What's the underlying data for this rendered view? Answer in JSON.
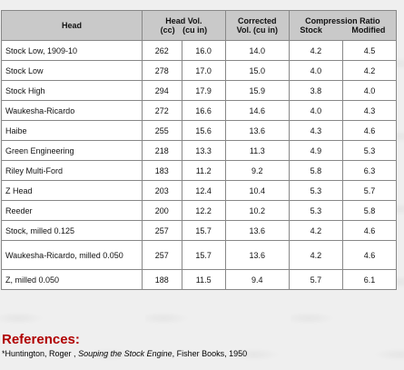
{
  "table": {
    "headers": {
      "head": "Head",
      "head_vol_title": "Head Vol.",
      "head_vol_cc": "(cc)",
      "head_vol_cuin": "(cu in)",
      "corrected_title": "Corrected",
      "corrected_sub": "Vol. (cu in)",
      "compression_title": "Compression Ratio",
      "compression_stock": "Stock",
      "compression_modified": "Modified"
    },
    "rows": [
      {
        "name": "Stock Low, 1909-10",
        "cc": "262",
        "cuin": "16.0",
        "corrected": "14.0",
        "stock": "4.2",
        "modified": "4.5"
      },
      {
        "name": "Stock Low",
        "cc": "278",
        "cuin": "17.0",
        "corrected": "15.0",
        "stock": "4.0",
        "modified": "4.2"
      },
      {
        "name": "Stock High",
        "cc": "294",
        "cuin": "17.9",
        "corrected": "15.9",
        "stock": "3.8",
        "modified": "4.0"
      },
      {
        "name": "Waukesha-Ricardo",
        "cc": "272",
        "cuin": "16.6",
        "corrected": "14.6",
        "stock": "4.0",
        "modified": "4.3"
      },
      {
        "name": "Haibe",
        "cc": "255",
        "cuin": "15.6",
        "corrected": "13.6",
        "stock": "4.3",
        "modified": "4.6"
      },
      {
        "name": "Green Engineering",
        "cc": "218",
        "cuin": "13.3",
        "corrected": "11.3",
        "stock": "4.9",
        "modified": "5.3"
      },
      {
        "name": "Riley Multi-Ford",
        "cc": "183",
        "cuin": "11.2",
        "corrected": "9.2",
        "stock": "5.8",
        "modified": "6.3"
      },
      {
        "name": "Z Head",
        "cc": "203",
        "cuin": "12.4",
        "corrected": "10.4",
        "stock": "5.3",
        "modified": "5.7"
      },
      {
        "name": "Reeder",
        "cc": "200",
        "cuin": "12.2",
        "corrected": "10.2",
        "stock": "5.3",
        "modified": "5.8"
      },
      {
        "name": "Stock, milled 0.125",
        "cc": "257",
        "cuin": "15.7",
        "corrected": "13.6",
        "stock": "4.2",
        "modified": "4.6"
      },
      {
        "name": "Waukesha-Ricardo, milled 0.050",
        "cc": "257",
        "cuin": "15.7",
        "corrected": "13.6",
        "stock": "4.2",
        "modified": "4.6"
      },
      {
        "name": "Z, milled 0.050",
        "cc": "188",
        "cuin": "11.5",
        "corrected": "9.4",
        "stock": "5.7",
        "modified": "6.1"
      }
    ]
  },
  "references": {
    "title": "References:",
    "citation_author": "*Huntington, Roger , ",
    "citation_title": "Souping the Stock Engine",
    "citation_rest": ", Fisher Books, 1950"
  }
}
